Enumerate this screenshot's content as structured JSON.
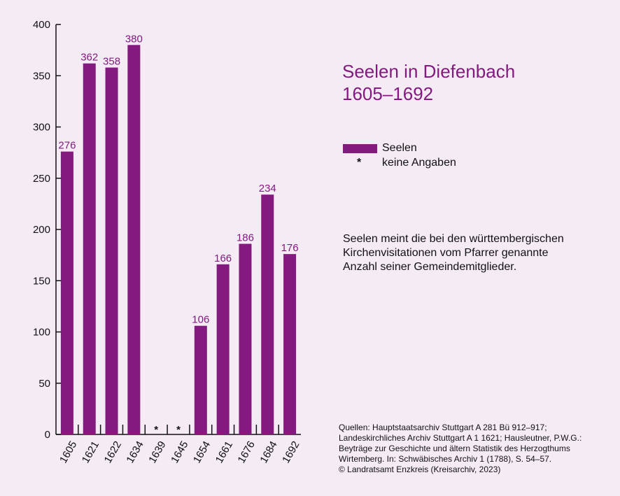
{
  "colors": {
    "bar": "#84197f",
    "background": "#f4ebf5",
    "text": "#111111",
    "accent": "#84197f"
  },
  "title_lines": [
    "Seelen in Diefenbach",
    "1605–1692"
  ],
  "legend": {
    "series_label": "Seelen",
    "missing_symbol": "*",
    "missing_label": "keine Angaben"
  },
  "note_lines": [
    "Seelen meint die bei den württembergischen",
    "Kirchenvisitationen vom Pfarrer genannte",
    "Anzahl seiner Gemeindemitglieder."
  ],
  "sources_lines": [
    "Quellen: Hauptstaatsarchiv Stuttgart A 281 Bü 912–917;",
    "Landeskirchliches Archiv Stuttgart A 1 1621; Hausleutner, P.W.G.:",
    "Beyträge zur Geschichte und ältern Statistik des Herzogthums",
    "Wirtemberg. In: Schwäbisches Archiv 1 (1788), S. 54–57.",
    "© Landratsamt Enzkreis (Kreisarchiv, 2023)"
  ],
  "chart_data": {
    "type": "bar",
    "categories": [
      "1605",
      "1621",
      "1622",
      "1634",
      "1639",
      "1645",
      "1654",
      "1661",
      "1676",
      "1684",
      "1692"
    ],
    "series": [
      {
        "name": "Seelen",
        "values": [
          276,
          362,
          358,
          380,
          null,
          null,
          106,
          166,
          186,
          234,
          176
        ]
      }
    ],
    "missing_marker": "*",
    "value_labels": [
      "276",
      "362",
      "358",
      "380",
      "",
      "",
      "106",
      "166",
      "186",
      "234",
      "176"
    ],
    "yticks": [
      0,
      50,
      100,
      150,
      200,
      250,
      300,
      350,
      400
    ],
    "ylim": [
      0,
      400
    ],
    "grid": false,
    "legend_position": "right"
  }
}
